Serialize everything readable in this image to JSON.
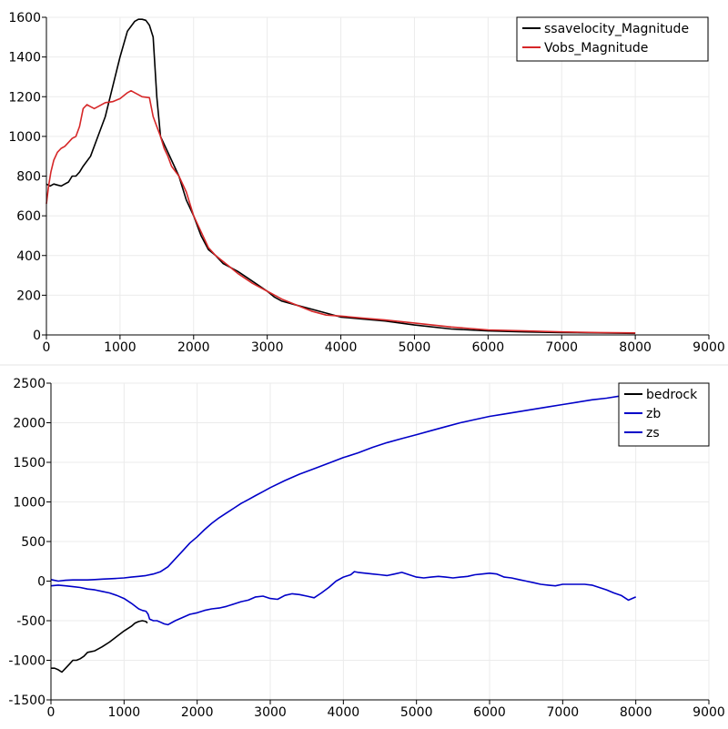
{
  "chart_data": [
    {
      "type": "line",
      "title": "",
      "xlabel": "",
      "ylabel": "",
      "xlim": [
        0,
        9000
      ],
      "ylim": [
        0,
        1600
      ],
      "xticks": [
        0,
        1000,
        2000,
        3000,
        4000,
        5000,
        6000,
        7000,
        8000,
        9000
      ],
      "yticks": [
        0,
        200,
        400,
        600,
        800,
        1000,
        1200,
        1400,
        1600
      ],
      "grid": true,
      "legend_position": "top-right",
      "series": [
        {
          "name": "ssavelocity_Magnitude",
          "color": "#000000",
          "x": [
            0,
            50,
            100,
            150,
            200,
            250,
            300,
            350,
            400,
            450,
            500,
            600,
            700,
            800,
            900,
            1000,
            1100,
            1200,
            1250,
            1300,
            1350,
            1400,
            1450,
            1500,
            1550,
            1600,
            1650,
            1700,
            1800,
            1900,
            2000,
            2100,
            2200,
            2300,
            2400,
            2500,
            2600,
            2800,
            3000,
            3100,
            3200,
            3400,
            3600,
            3800,
            4000,
            4300,
            4600,
            5000,
            5500,
            6000,
            6500,
            7000,
            7500,
            8000
          ],
          "y": [
            760,
            750,
            760,
            755,
            750,
            760,
            770,
            800,
            800,
            820,
            850,
            900,
            1000,
            1100,
            1250,
            1400,
            1530,
            1580,
            1590,
            1590,
            1585,
            1560,
            1500,
            1200,
            1000,
            960,
            920,
            880,
            800,
            680,
            600,
            500,
            430,
            400,
            360,
            340,
            320,
            270,
            220,
            190,
            170,
            150,
            130,
            110,
            90,
            80,
            70,
            50,
            30,
            20,
            15,
            12,
            10,
            8
          ]
        },
        {
          "name": "Vobs_Magnitude",
          "color": "#d62728",
          "x": [
            0,
            30,
            60,
            100,
            150,
            200,
            250,
            300,
            350,
            400,
            450,
            500,
            550,
            600,
            650,
            700,
            800,
            900,
            1000,
            1100,
            1150,
            1200,
            1250,
            1300,
            1400,
            1450,
            1500,
            1550,
            1600,
            1650,
            1700,
            1800,
            1900,
            2000,
            2100,
            2200,
            2300,
            2400,
            2500,
            2600,
            2800,
            3000,
            3200,
            3400,
            3600,
            3800,
            4000,
            4300,
            4600,
            5000,
            5500,
            6000,
            6500,
            7000,
            7500,
            8000
          ],
          "y": [
            660,
            750,
            820,
            880,
            920,
            940,
            950,
            970,
            990,
            1000,
            1050,
            1140,
            1160,
            1150,
            1140,
            1150,
            1170,
            1175,
            1190,
            1220,
            1230,
            1220,
            1210,
            1200,
            1195,
            1100,
            1050,
            1000,
            940,
            900,
            850,
            800,
            720,
            600,
            520,
            440,
            400,
            370,
            340,
            310,
            260,
            220,
            180,
            150,
            120,
            100,
            95,
            85,
            75,
            60,
            40,
            25,
            20,
            15,
            12,
            10
          ]
        }
      ]
    },
    {
      "type": "line",
      "title": "",
      "xlabel": "",
      "ylabel": "",
      "xlim": [
        0,
        9000
      ],
      "ylim": [
        -1500,
        2500
      ],
      "xticks": [
        0,
        1000,
        2000,
        3000,
        4000,
        5000,
        6000,
        7000,
        8000,
        9000
      ],
      "yticks": [
        -1500,
        -1000,
        -500,
        0,
        500,
        1000,
        1500,
        2000,
        2500
      ],
      "grid": true,
      "legend_position": "top-right",
      "series": [
        {
          "name": "bedrock",
          "color": "#000000",
          "x": [
            0,
            50,
            100,
            150,
            200,
            250,
            300,
            350,
            400,
            450,
            500,
            600,
            700,
            800,
            900,
            1000,
            1100,
            1150,
            1200,
            1250,
            1300,
            1320
          ],
          "y": [
            -1100,
            -1100,
            -1120,
            -1150,
            -1100,
            -1050,
            -1000,
            -1000,
            -980,
            -950,
            -900,
            -880,
            -830,
            -770,
            -700,
            -630,
            -570,
            -530,
            -510,
            -500,
            -510,
            -530
          ]
        },
        {
          "name": "zb",
          "color": "#0000c8",
          "x": [
            0,
            100,
            200,
            300,
            400,
            500,
            600,
            700,
            800,
            900,
            1000,
            1100,
            1200,
            1250,
            1300,
            1330,
            1350,
            1400,
            1450,
            1500,
            1550,
            1600,
            1700,
            1800,
            1900,
            2000,
            2100,
            2200,
            2300,
            2400,
            2500,
            2600,
            2700,
            2800,
            2900,
            3000,
            3100,
            3200,
            3300,
            3400,
            3500,
            3600,
            3700,
            3800,
            3900,
            4000,
            4100,
            4150,
            4200,
            4300,
            4400,
            4500,
            4600,
            4700,
            4800,
            4900,
            5000,
            5100,
            5200,
            5300,
            5400,
            5500,
            5600,
            5700,
            5800,
            5900,
            6000,
            6100,
            6200,
            6300,
            6400,
            6500,
            6600,
            6700,
            6800,
            6900,
            7000,
            7100,
            7200,
            7300,
            7400,
            7500,
            7600,
            7700,
            7800,
            7900,
            8000
          ],
          "y": [
            -60,
            -50,
            -60,
            -70,
            -80,
            -100,
            -110,
            -130,
            -150,
            -180,
            -220,
            -280,
            -350,
            -370,
            -380,
            -420,
            -480,
            -500,
            -500,
            -520,
            -540,
            -550,
            -500,
            -460,
            -420,
            -400,
            -370,
            -350,
            -340,
            -320,
            -290,
            -260,
            -240,
            -200,
            -190,
            -220,
            -230,
            -180,
            -160,
            -170,
            -190,
            -210,
            -150,
            -80,
            0,
            50,
            80,
            120,
            110,
            100,
            90,
            80,
            70,
            90,
            110,
            80,
            50,
            40,
            50,
            60,
            50,
            40,
            50,
            60,
            80,
            90,
            100,
            90,
            50,
            40,
            20,
            0,
            -20,
            -40,
            -50,
            -60,
            -40,
            -40,
            -40,
            -40,
            -50,
            -80,
            -110,
            -150,
            -180,
            -240,
            -200
          ]
        },
        {
          "name": "zs",
          "color": "#0000c8",
          "x": [
            0,
            100,
            200,
            300,
            400,
            500,
            600,
            700,
            800,
            900,
            1000,
            1100,
            1200,
            1300,
            1400,
            1500,
            1600,
            1700,
            1800,
            1900,
            2000,
            2100,
            2200,
            2300,
            2400,
            2500,
            2600,
            2700,
            2800,
            2900,
            3000,
            3200,
            3400,
            3600,
            3800,
            4000,
            4200,
            4400,
            4600,
            4800,
            5000,
            5200,
            5400,
            5600,
            5800,
            6000,
            6200,
            6400,
            6600,
            6800,
            7000,
            7200,
            7400,
            7600,
            7800,
            8000
          ],
          "y": [
            20,
            0,
            10,
            15,
            15,
            15,
            20,
            25,
            30,
            35,
            40,
            50,
            60,
            70,
            90,
            120,
            180,
            280,
            380,
            480,
            560,
            650,
            730,
            800,
            860,
            920,
            980,
            1030,
            1080,
            1130,
            1180,
            1270,
            1350,
            1420,
            1490,
            1560,
            1620,
            1690,
            1750,
            1800,
            1850,
            1900,
            1950,
            2000,
            2040,
            2080,
            2110,
            2140,
            2170,
            2200,
            2230,
            2260,
            2290,
            2310,
            2340,
            2360
          ]
        }
      ]
    }
  ]
}
